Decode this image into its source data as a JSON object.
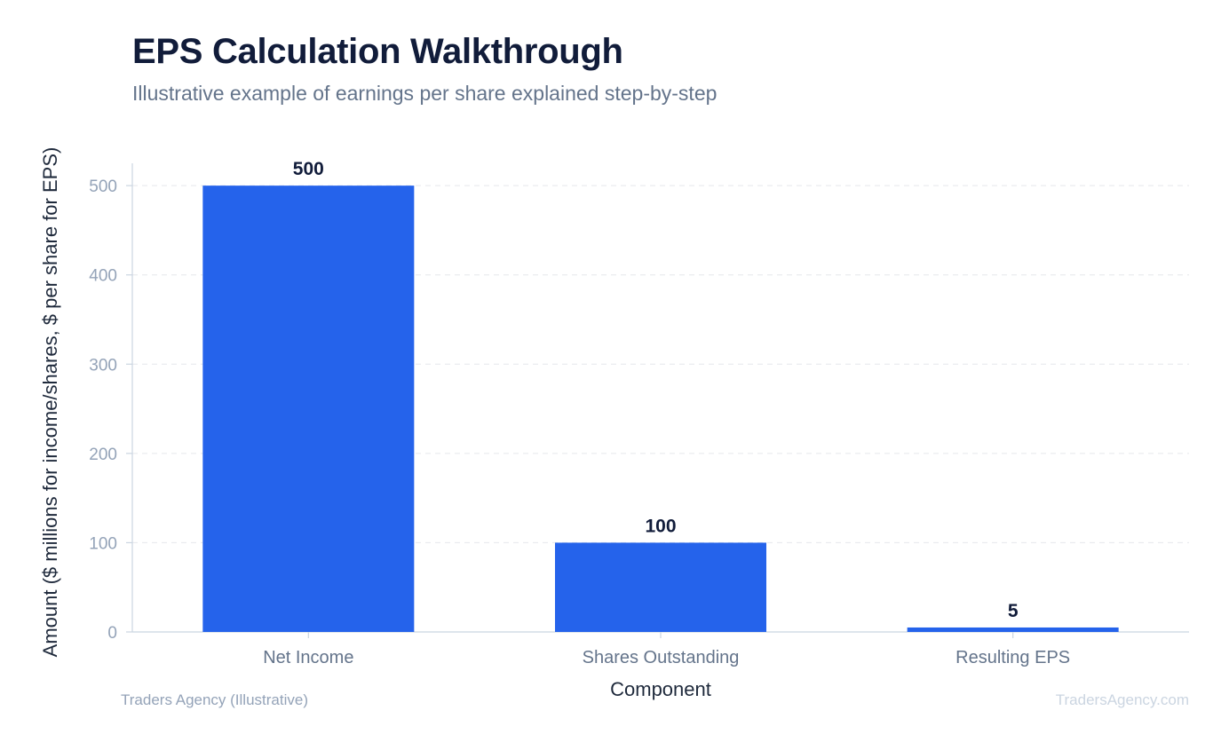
{
  "chart_data": {
    "type": "bar",
    "title": "EPS Calculation Walkthrough",
    "subtitle": "Illustrative example of earnings per share explained step-by-step",
    "xlabel": "Component",
    "ylabel": "Amount ($ millions for income/shares, $ per share for EPS)",
    "categories": [
      "Net Income",
      "Shares Outstanding",
      "Resulting EPS"
    ],
    "values": [
      500,
      100,
      5
    ],
    "data_labels": [
      "500",
      "100",
      "5"
    ],
    "yticks": [
      0,
      100,
      200,
      300,
      400,
      500
    ],
    "ylim": [
      0,
      525
    ],
    "grid": "horizontal dashed",
    "bar_color": "#2563eb",
    "legend": "none"
  },
  "footer": {
    "source_left": "Traders Agency (Illustrative)",
    "source_right": "TradersAgency.com"
  }
}
